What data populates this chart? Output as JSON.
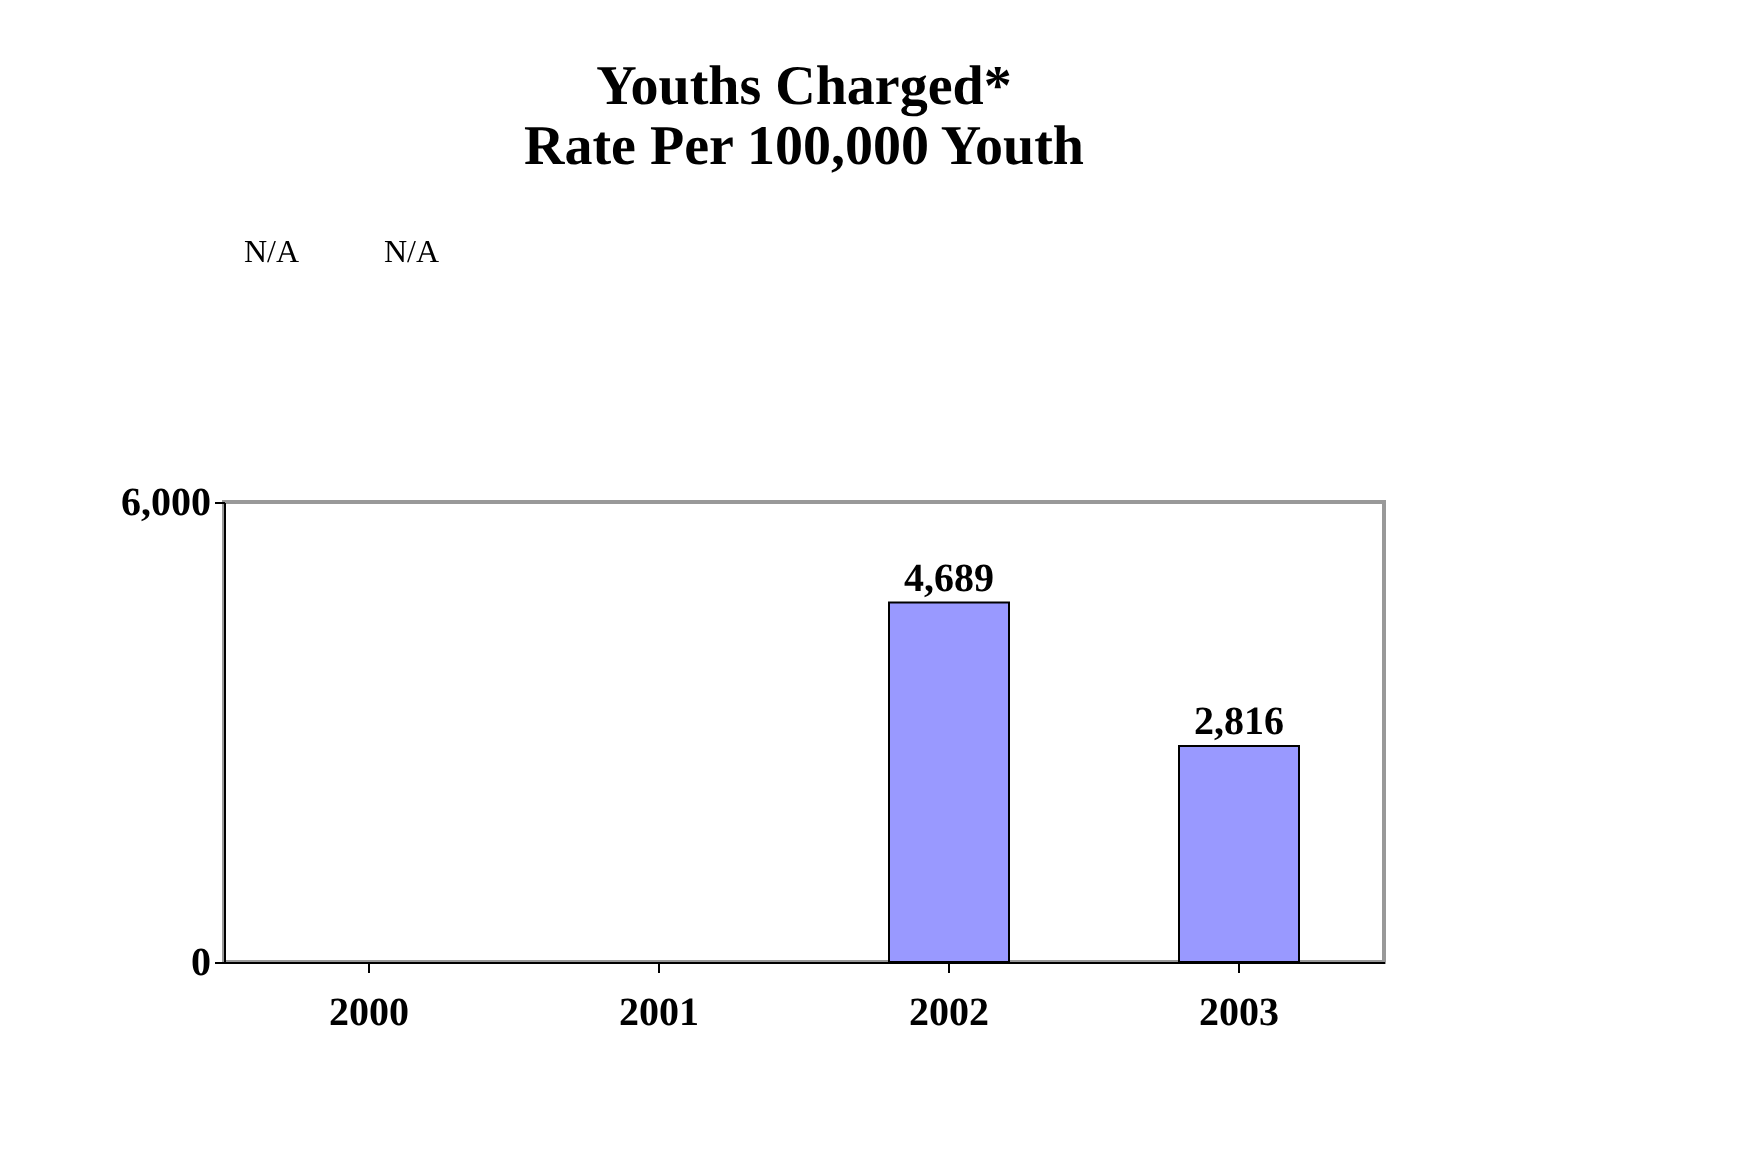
{
  "chart_data": {
    "type": "bar",
    "title": "Youths Charged*\nRate Per 100,000 Youth",
    "categories": [
      "2000",
      "2001",
      "2002",
      "2003"
    ],
    "values": [
      null,
      null,
      4689,
      2816
    ],
    "value_labels": [
      null,
      null,
      "4,689",
      "2,816"
    ],
    "color": "#9999ff",
    "ylim": [
      0,
      6000
    ],
    "yticks": [
      0,
      {
        "value": 6000,
        "label": "6,000"
      }
    ],
    "grid": false,
    "annotations": [
      "N/A",
      "N/A"
    ]
  }
}
